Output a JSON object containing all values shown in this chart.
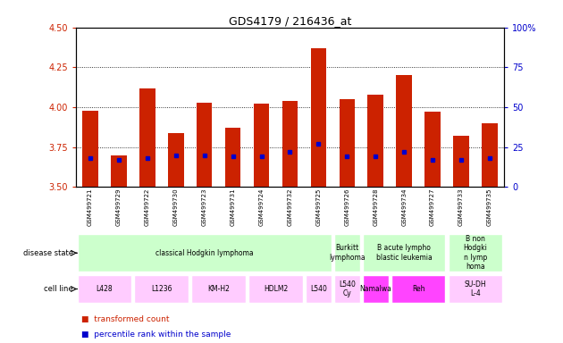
{
  "title": "GDS4179 / 216436_at",
  "samples": [
    "GSM499721",
    "GSM499729",
    "GSM499722",
    "GSM499730",
    "GSM499723",
    "GSM499731",
    "GSM499724",
    "GSM499732",
    "GSM499725",
    "GSM499726",
    "GSM499728",
    "GSM499734",
    "GSM499727",
    "GSM499733",
    "GSM499735"
  ],
  "transformed_counts": [
    3.98,
    3.7,
    4.12,
    3.84,
    4.03,
    3.87,
    4.02,
    4.04,
    4.37,
    4.05,
    4.08,
    4.2,
    3.97,
    3.82,
    3.9
  ],
  "percentile_ranks": [
    18,
    17,
    18,
    20,
    20,
    19,
    19,
    22,
    27,
    19,
    19,
    22,
    17,
    17,
    18
  ],
  "ylim_left": [
    3.5,
    4.5
  ],
  "ylim_right": [
    0,
    100
  ],
  "yticks_left": [
    3.5,
    3.75,
    4.0,
    4.25,
    4.5
  ],
  "yticks_right_vals": [
    0,
    25,
    50,
    75,
    100
  ],
  "yticks_right_labels": [
    "0",
    "25",
    "50",
    "75",
    "100%"
  ],
  "grid_lines": [
    3.75,
    4.0,
    4.25
  ],
  "bar_color": "#cc2200",
  "percentile_color": "#0000cc",
  "xtick_bg": "#cccccc",
  "disease_groups": [
    {
      "label": "classical Hodgkin lymphoma",
      "start": 0,
      "end": 8,
      "color": "#ccffcc"
    },
    {
      "label": "Burkitt\nlymphoma",
      "start": 9,
      "end": 9,
      "color": "#ccffcc"
    },
    {
      "label": "B acute lympho\nblastic leukemia",
      "start": 10,
      "end": 12,
      "color": "#ccffcc"
    },
    {
      "label": "B non\nHodgki\nn lymp\nhoma",
      "start": 13,
      "end": 14,
      "color": "#ccffcc"
    }
  ],
  "cell_line_groups": [
    {
      "label": "L428",
      "start": 0,
      "end": 1,
      "color": "#ffccff"
    },
    {
      "label": "L1236",
      "start": 2,
      "end": 3,
      "color": "#ffccff"
    },
    {
      "label": "KM-H2",
      "start": 4,
      "end": 5,
      "color": "#ffccff"
    },
    {
      "label": "HDLM2",
      "start": 6,
      "end": 7,
      "color": "#ffccff"
    },
    {
      "label": "L540",
      "start": 8,
      "end": 8,
      "color": "#ffccff"
    },
    {
      "label": "L540\nCy",
      "start": 9,
      "end": 9,
      "color": "#ffccff"
    },
    {
      "label": "Namalwa",
      "start": 10,
      "end": 10,
      "color": "#ff44ff"
    },
    {
      "label": "Reh",
      "start": 11,
      "end": 12,
      "color": "#ff44ff"
    },
    {
      "label": "SU-DH\nL-4",
      "start": 13,
      "end": 14,
      "color": "#ffccff"
    }
  ],
  "fig_width": 6.3,
  "fig_height": 3.84,
  "dpi": 100
}
